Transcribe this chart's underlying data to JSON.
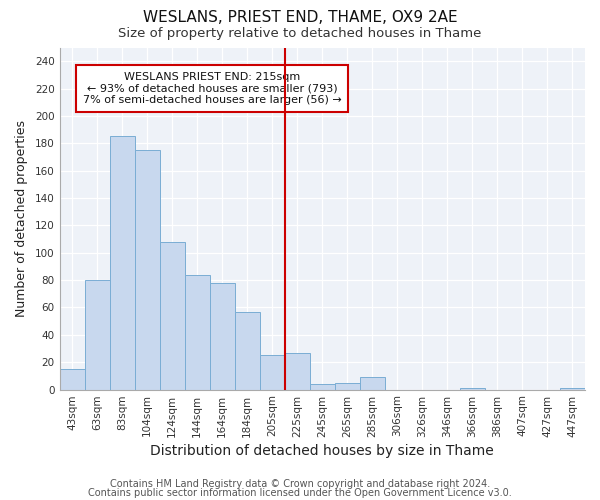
{
  "title": "WESLANS, PRIEST END, THAME, OX9 2AE",
  "subtitle": "Size of property relative to detached houses in Thame",
  "xlabel": "Distribution of detached houses by size in Thame",
  "ylabel": "Number of detached properties",
  "bar_labels": [
    "43sqm",
    "63sqm",
    "83sqm",
    "104sqm",
    "124sqm",
    "144sqm",
    "164sqm",
    "184sqm",
    "205sqm",
    "225sqm",
    "245sqm",
    "265sqm",
    "285sqm",
    "306sqm",
    "326sqm",
    "346sqm",
    "366sqm",
    "386sqm",
    "407sqm",
    "427sqm",
    "447sqm"
  ],
  "bar_values": [
    15,
    80,
    185,
    175,
    108,
    84,
    78,
    57,
    25,
    27,
    4,
    5,
    9,
    0,
    0,
    0,
    1,
    0,
    0,
    0,
    1
  ],
  "bar_color": "#c8d8ee",
  "bar_edge_color": "#7aadd4",
  "ylim": [
    0,
    250
  ],
  "yticks": [
    0,
    20,
    40,
    60,
    80,
    100,
    120,
    140,
    160,
    180,
    200,
    220,
    240
  ],
  "vline_x_index": 8.5,
  "vline_color": "#cc0000",
  "annotation_title": "WESLANS PRIEST END: 215sqm",
  "annotation_line1": "← 93% of detached houses are smaller (793)",
  "annotation_line2": "7% of semi-detached houses are larger (56) →",
  "footer_line1": "Contains HM Land Registry data © Crown copyright and database right 2024.",
  "footer_line2": "Contains public sector information licensed under the Open Government Licence v3.0.",
  "plot_bg_color": "#eef2f8",
  "fig_bg_color": "#ffffff",
  "grid_color": "#ffffff",
  "title_fontsize": 11,
  "subtitle_fontsize": 9.5,
  "xlabel_fontsize": 10,
  "ylabel_fontsize": 9,
  "tick_fontsize": 7.5,
  "annot_fontsize": 8,
  "footer_fontsize": 7
}
